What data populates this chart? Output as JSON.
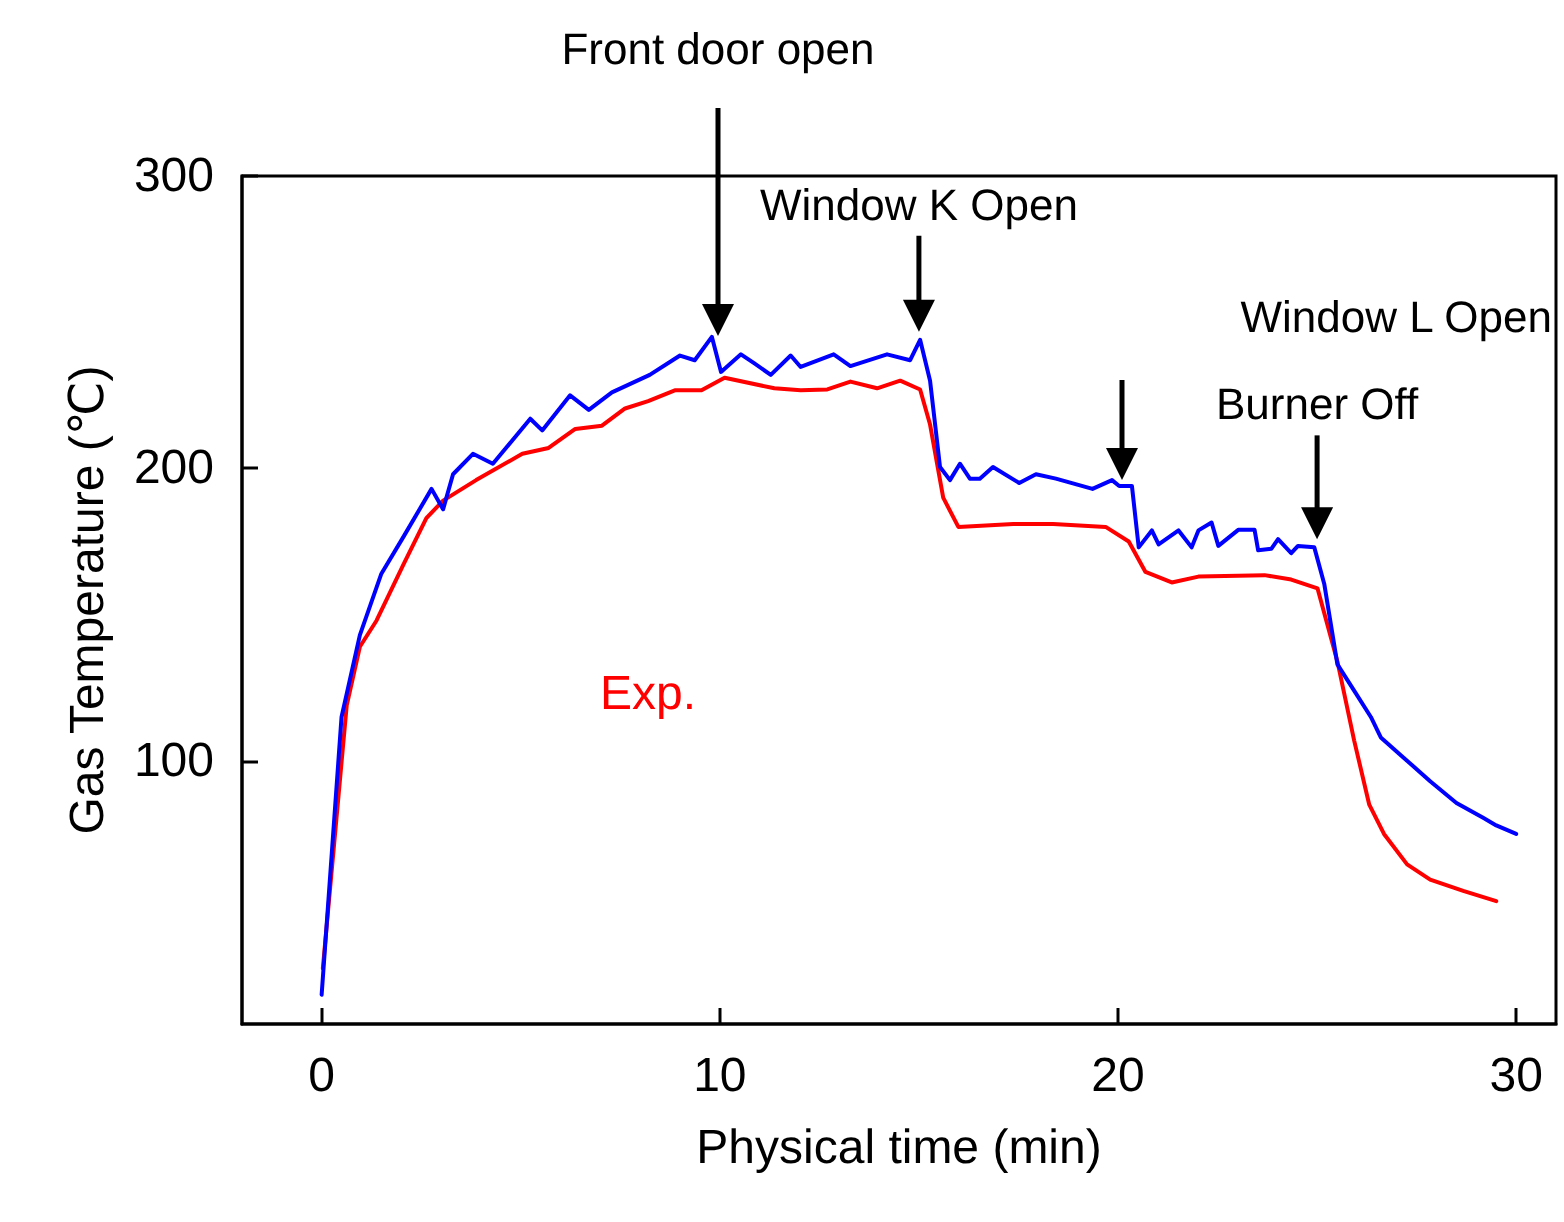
{
  "chart_data": {
    "type": "line",
    "xlabel": "Physical time (min)",
    "ylabel": "Gas Temperature (℃)",
    "xlim": [
      -2,
      31
    ],
    "xticks": [
      0,
      10,
      20,
      30
    ],
    "ylim": [
      10,
      300
    ],
    "yticks": [
      100,
      200,
      300
    ],
    "grid": false,
    "legend": "left",
    "marker": "none",
    "line_style": "solid",
    "annotations": [
      "Front door open",
      {
        "text": "Window K Open",
        "x": 15,
        "y": 244
      },
      "Window L Open",
      {
        "text": "Burner Off",
        "x": 25,
        "y": 173
      }
    ],
    "series": [
      {
        "name": "Exp.",
        "color": "#ff0000",
        "x": [
          0.03,
          0.63,
          0.96,
          1.38,
          2.05,
          2.63,
          3.05,
          3.88,
          5.04,
          5.7,
          6.37,
          7.04,
          7.62,
          8.2,
          8.87,
          9.54,
          10.12,
          11.37,
          12.03,
          12.7,
          13.28,
          13.95,
          14.53,
          15.03,
          15.28,
          15.61,
          15.99,
          17.37,
          18.37,
          19.69,
          20.27,
          20.69,
          21.35,
          22.02,
          23.68,
          24.35,
          25.01,
          25.51,
          25.93,
          26.31,
          26.68,
          27.26,
          27.84,
          28.67,
          29.5
        ],
        "values": [
          29,
          119,
          139,
          148,
          167,
          183,
          189,
          196,
          205,
          207,
          213.5,
          214.6,
          220.5,
          223,
          226.7,
          226.7,
          231,
          227.4,
          226.7,
          227,
          229.7,
          227.4,
          230,
          227,
          215,
          190,
          180,
          181,
          181,
          180,
          175,
          164.6,
          161,
          163,
          163.5,
          162,
          159,
          134,
          107,
          85,
          75,
          64.6,
          59.4,
          55.5,
          52
        ]
      },
      {
        "color": "#0000ff",
        "x": [
          0,
          0.5,
          0.96,
          1.5,
          2.05,
          2.76,
          3.05,
          3.3,
          3.8,
          4.3,
          5.24,
          5.54,
          6.24,
          6.71,
          7.29,
          8.24,
          9.0,
          9.37,
          9.8,
          10.03,
          10.53,
          10.86,
          11.28,
          11.78,
          12.03,
          12.86,
          13.28,
          14.2,
          14.78,
          15.03,
          15.28,
          15.53,
          15.78,
          16.03,
          16.28,
          16.53,
          16.86,
          17.52,
          17.94,
          18.44,
          19.36,
          19.85,
          20.03,
          20.35,
          20.52,
          20.85,
          21.02,
          21.52,
          21.85,
          22.02,
          22.35,
          22.52,
          23.02,
          23.43,
          23.52,
          23.85,
          24.02,
          24.35,
          24.52,
          24.93,
          25.18,
          25.51,
          25.93,
          26.35,
          26.6,
          27.18,
          27.84,
          28.5,
          29.17,
          29.5,
          30.0
        ],
        "values": [
          20,
          115,
          143,
          164,
          176.5,
          193,
          186,
          198,
          205,
          201.6,
          217,
          213,
          225,
          220,
          226,
          232,
          238.6,
          237,
          245,
          233,
          239,
          236,
          232,
          238.6,
          234.7,
          239,
          235,
          239,
          237,
          244,
          230,
          200.5,
          196,
          201.6,
          196.5,
          196.5,
          200.5,
          195,
          198,
          196.5,
          193,
          196,
          194,
          194,
          173,
          178.8,
          174,
          178.8,
          173,
          178.8,
          181.5,
          173.5,
          179,
          179,
          172,
          172.5,
          175.8,
          171,
          173.5,
          173,
          160.5,
          133,
          124,
          115,
          108,
          101,
          93,
          85.6,
          80.5,
          77.9,
          75
        ]
      }
    ]
  }
}
